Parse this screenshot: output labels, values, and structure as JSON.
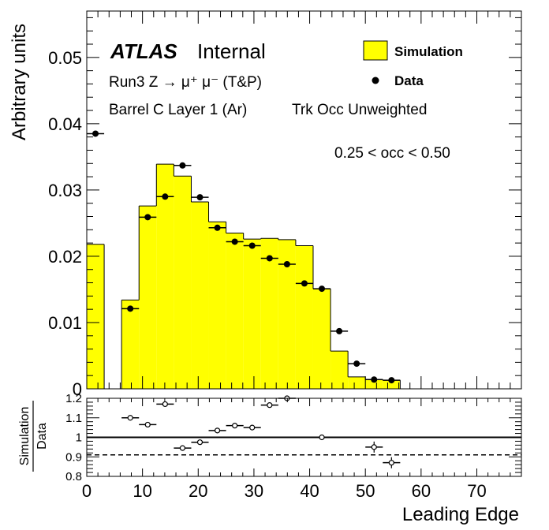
{
  "chart_data": [
    {
      "type": "bar",
      "panel": "main",
      "ylabel": "Arbitrary units",
      "xlim": [
        0,
        78
      ],
      "ylim": [
        0,
        0.057
      ],
      "yticks": [
        0,
        0.01,
        0.02,
        0.03,
        0.04,
        0.05
      ],
      "ytick_labels": [
        "0",
        "0.01",
        "0.02",
        "0.03",
        "0.04",
        "0.05"
      ],
      "atlas_label": "ATLAS",
      "atlas_status": "Internal",
      "annotations": [
        "Run3 Z → μ⁺ μ⁻ (T&P)",
        "Barrel C Layer 1 (Ar)",
        "Trk Occ Unweighted",
        "0.25 < occ < 0.50"
      ],
      "legend": [
        {
          "label": "Simulation",
          "kind": "box",
          "color": "#ffff00"
        },
        {
          "label": "Data",
          "kind": "marker",
          "color": "#000000"
        }
      ],
      "legend_position": "top-right",
      "series": [
        {
          "name": "Simulation",
          "style": "filled-histogram",
          "color": "#ffff00",
          "edges": [
            0,
            3.125,
            6.25,
            9.375,
            12.5,
            15.625,
            18.75,
            21.875,
            25,
            28.125,
            31.25,
            34.375,
            37.5,
            40.625,
            43.75,
            46.875,
            50,
            53.125,
            56.25
          ],
          "values": [
            0.0218,
            0,
            0.0134,
            0.0276,
            0.0339,
            0.0321,
            0.0282,
            0.0252,
            0.0235,
            0.0226,
            0.0227,
            0.0225,
            0.0216,
            0.0151,
            0.0057,
            0.0018,
            0.0014,
            0.0013
          ]
        },
        {
          "name": "Data",
          "style": "points",
          "x": [
            1.5625,
            7.8125,
            10.9375,
            14.0625,
            17.1875,
            20.3125,
            23.4375,
            26.5625,
            29.6875,
            32.8125,
            35.9375,
            39.0625,
            42.1875,
            45.3125,
            48.4375,
            51.5625,
            54.6875
          ],
          "values": [
            0.0385,
            0.0121,
            0.0259,
            0.029,
            0.0337,
            0.0289,
            0.0243,
            0.0222,
            0.0216,
            0.0197,
            0.0188,
            0.0159,
            0.0151,
            0.0087,
            0.0038,
            0.0014,
            0.0013
          ]
        }
      ]
    },
    {
      "type": "scatter",
      "panel": "ratio",
      "xlabel": "Leading Edge",
      "ylabel": "Simulation / Data",
      "ylabel_numerator": "Simulation",
      "ylabel_denominator": "Data",
      "xlim": [
        0,
        78
      ],
      "ylim": [
        0.8,
        1.2
      ],
      "yticks": [
        0.8,
        0.9,
        1,
        1.1,
        1.2
      ],
      "ytick_labels": [
        "0.8",
        "0.9",
        "1",
        "1.1",
        "1.2"
      ],
      "xticks": [
        0,
        10,
        20,
        30,
        40,
        50,
        60,
        70
      ],
      "xtick_labels": [
        "0",
        "10",
        "20",
        "30",
        "40",
        "50",
        "60",
        "70"
      ],
      "reference_lines": [
        {
          "y": 1.0,
          "style": "solid"
        },
        {
          "y": 0.91,
          "style": "dashed"
        }
      ],
      "series": [
        {
          "name": "Ratio",
          "x": [
            7.8125,
            10.9375,
            14.0625,
            17.1875,
            20.3125,
            23.4375,
            26.5625,
            29.6875,
            32.8125,
            35.9375,
            42.1875,
            51.5625,
            54.6875
          ],
          "values": [
            1.1,
            1.065,
            1.17,
            0.945,
            0.975,
            1.035,
            1.06,
            1.05,
            1.165,
            1.2,
            1.0,
            0.95,
            0.87
          ]
        }
      ]
    }
  ]
}
